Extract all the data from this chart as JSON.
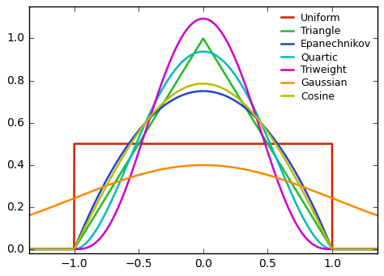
{
  "xlim": [
    -1.35,
    1.35
  ],
  "ylim": [
    -0.02,
    1.15
  ],
  "xticks": [
    -1.0,
    -0.5,
    0.0,
    0.5,
    1.0
  ],
  "yticks": [
    0.0,
    0.2,
    0.4,
    0.6,
    0.8,
    1.0
  ],
  "legend_labels": [
    "Uniform",
    "Triangle",
    "Epanechnikov",
    "Quartic",
    "Triweight",
    "Gaussian",
    "Cosine"
  ],
  "colors": {
    "Uniform": "#cc2200",
    "Triangle": "#22bb22",
    "Epanechnikov": "#2244cc",
    "Quartic": "#00bbbb",
    "Triweight": "#cc00cc",
    "Gaussian": "#ff8800",
    "Cosine": "#bbbb00"
  },
  "linewidth": 1.8,
  "figsize": [
    4.74,
    3.41
  ],
  "dpi": 100,
  "legend_fontsize": 9,
  "tick_fontsize": 10,
  "bg_color": "#f0f0f0",
  "axes_bg_color": "#ffffff"
}
